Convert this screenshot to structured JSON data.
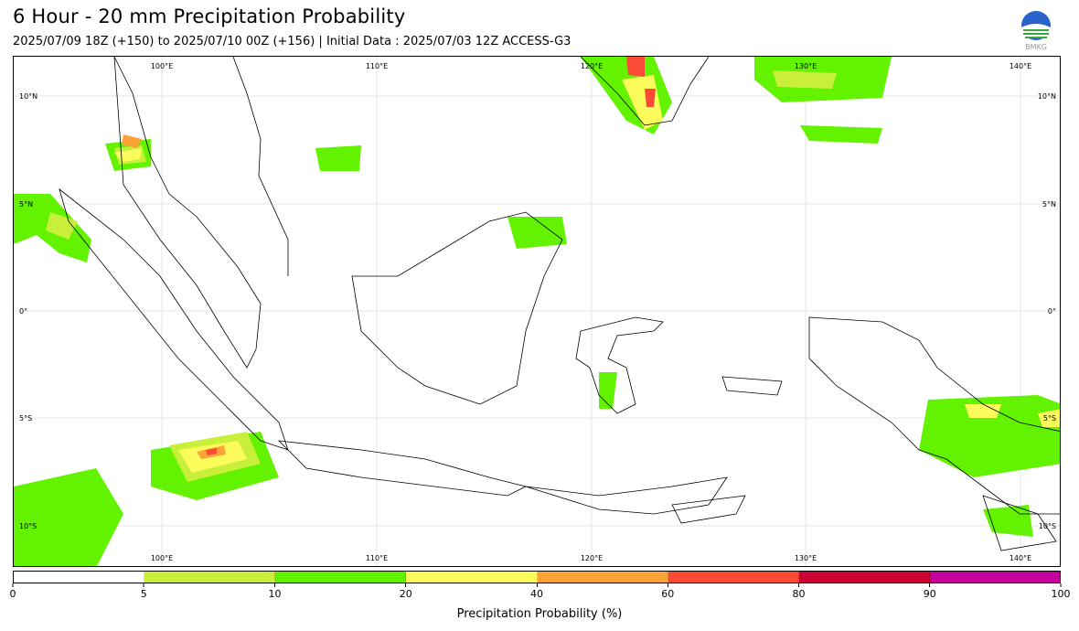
{
  "header": {
    "title": "6 Hour - 20 mm Precipitation Probability",
    "subtitle": "2025/07/09 18Z (+150) to 2025/07/10 00Z (+156) | Initial Data : 2025/07/03 12Z ACCESS-G3"
  },
  "logo": {
    "icon": "bmkg-logo",
    "text": "BMKG"
  },
  "map": {
    "lon_labels_top": [
      "100°E",
      "110°E",
      "120°E",
      "130°E",
      "140°E"
    ],
    "lon_labels_bottom": [
      "100°E",
      "110°E",
      "120°E",
      "130°E",
      "140°E"
    ],
    "lat_labels_left": [
      "10°N",
      "5°N",
      "0°",
      "5°S",
      "10°S"
    ],
    "lat_labels_right": [
      "10°N",
      "5°N",
      "0°",
      "5°S",
      "10°S"
    ]
  },
  "colorbar": {
    "label": "Precipitation Probability (%)",
    "ticks": [
      "0",
      "5",
      "10",
      "20",
      "40",
      "60",
      "80",
      "90",
      "100"
    ],
    "colors": [
      "#ffffff",
      "#c8f03a",
      "#63f200",
      "#fbfb5c",
      "#fba337",
      "#fb4a35",
      "#cc0033",
      "#c6009a"
    ]
  }
}
